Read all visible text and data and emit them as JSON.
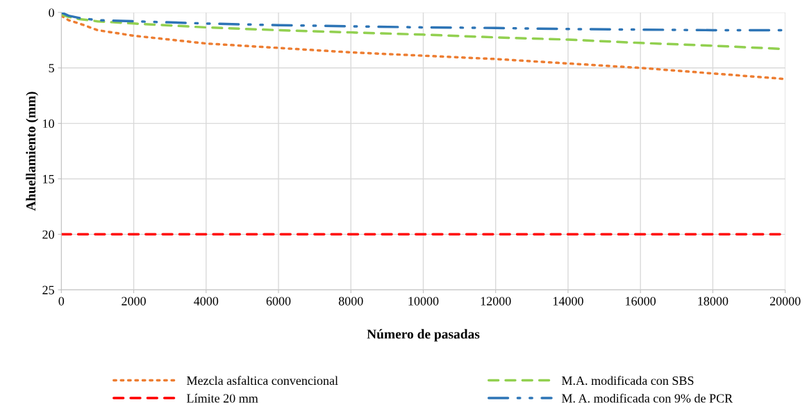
{
  "chart_data": {
    "type": "line",
    "xlabel": "Número de pasadas",
    "ylabel": "Ahuellamiento (mm)",
    "xlim": [
      0,
      20000
    ],
    "xticks": [
      0,
      2000,
      4000,
      6000,
      8000,
      10000,
      12000,
      14000,
      16000,
      18000,
      20000
    ],
    "ylim": [
      25,
      0
    ],
    "yticks": [
      0,
      5,
      10,
      15,
      20,
      25
    ],
    "grid": true,
    "legend": "bottom",
    "marker": "none",
    "series": [
      {
        "name": "Mezcla asfaltica convencional",
        "color": "#ed7d31",
        "line_style": "dotted",
        "x": [
          0,
          200,
          500,
          1000,
          2000,
          4000,
          6000,
          8000,
          10000,
          12000,
          14000,
          16000,
          18000,
          20000
        ],
        "values": [
          0.3,
          0.7,
          1.0,
          1.6,
          2.1,
          2.8,
          3.2,
          3.6,
          3.9,
          4.2,
          4.6,
          5.0,
          5.5,
          6.0
        ]
      },
      {
        "name": "Límite 20 mm",
        "color": "#ff0000",
        "line_style": "dashed",
        "x": [
          0,
          20000
        ],
        "values": [
          20,
          20
        ]
      },
      {
        "name": "M.A. modificada con SBS",
        "color": "#92d050",
        "line_style": "dashed",
        "x": [
          0,
          200,
          500,
          1000,
          2000,
          4000,
          6000,
          8000,
          10000,
          12000,
          14000,
          16000,
          18000,
          20000
        ],
        "values": [
          0.2,
          0.4,
          0.6,
          0.8,
          1.0,
          1.35,
          1.6,
          1.8,
          2.0,
          2.25,
          2.45,
          2.75,
          3.0,
          3.3
        ]
      },
      {
        "name": "M. A. modificada con 9% de PCR",
        "color": "#2e75b6",
        "line_style": "dashdotdot",
        "x": [
          0,
          200,
          500,
          1000,
          2000,
          4000,
          6000,
          8000,
          10000,
          12000,
          14000,
          16000,
          18000,
          20000
        ],
        "values": [
          0.0,
          0.3,
          0.5,
          0.7,
          0.8,
          1.0,
          1.15,
          1.25,
          1.35,
          1.4,
          1.5,
          1.55,
          1.6,
          1.6
        ]
      }
    ]
  }
}
